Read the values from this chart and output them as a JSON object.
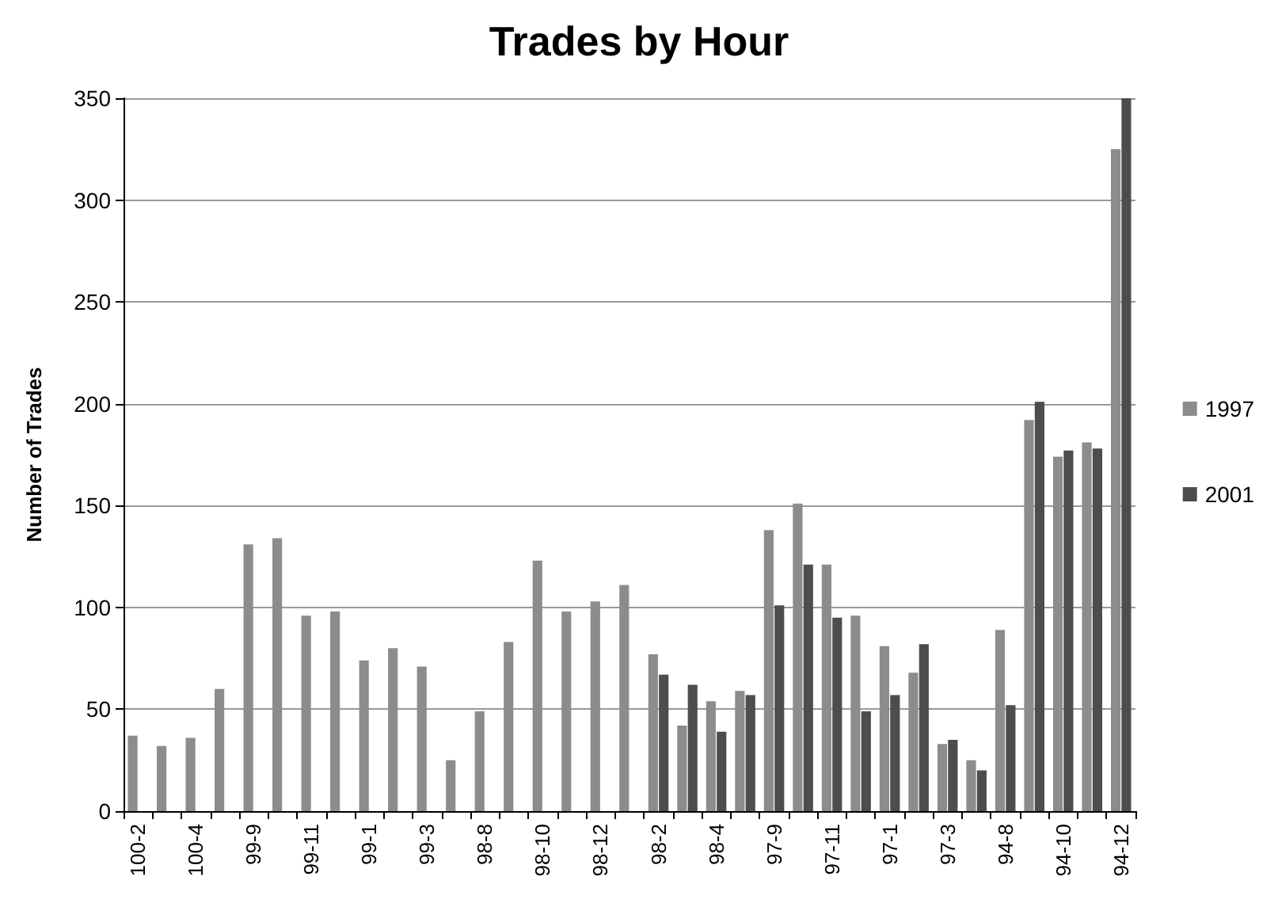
{
  "chart_data": {
    "type": "bar",
    "title": "Trades by Hour",
    "ylabel": "Number of Trades",
    "categories": [
      "100-2",
      null,
      "100-4",
      null,
      "99-9",
      null,
      "99-11",
      null,
      "99-1",
      null,
      "99-3",
      null,
      "98-8",
      null,
      "98-10",
      null,
      "98-12",
      null,
      "98-2",
      null,
      "98-4",
      null,
      "97-9",
      null,
      "97-11",
      null,
      "97-1",
      null,
      "97-3",
      null,
      "94-8",
      null,
      "94-10",
      null,
      "94-12"
    ],
    "series": [
      {
        "name": "1997",
        "color": "#8c8c8c",
        "values": [
          37,
          32,
          36,
          60,
          131,
          134,
          96,
          98,
          74,
          80,
          71,
          25,
          49,
          83,
          123,
          98,
          103,
          111,
          77,
          42,
          54,
          59,
          138,
          151,
          121,
          96,
          81,
          68,
          33,
          25,
          89,
          192,
          174,
          181,
          325
        ]
      },
      {
        "name": "2001",
        "color": "#4d4d4d",
        "values": [
          null,
          null,
          null,
          null,
          null,
          null,
          null,
          null,
          null,
          null,
          null,
          null,
          null,
          null,
          null,
          null,
          null,
          null,
          67,
          62,
          39,
          57,
          101,
          121,
          95,
          49,
          57,
          82,
          35,
          20,
          52,
          201,
          177,
          178,
          350
        ]
      }
    ],
    "ylim": [
      0,
      350
    ],
    "yticks": [
      0,
      50,
      100,
      150,
      200,
      250,
      300,
      350
    ],
    "grid": "y",
    "legend": "right"
  }
}
